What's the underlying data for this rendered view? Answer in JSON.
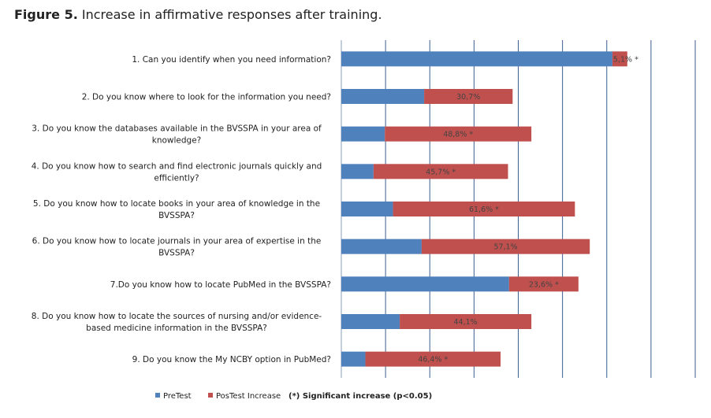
{
  "figure": {
    "label": "Figure 5.",
    "caption": "Increase in affirmative responses after training."
  },
  "chart_data": {
    "type": "bar",
    "orientation": "horizontal",
    "stacked": true,
    "title": "Figure 5. Increase in affirmative responses after training.",
    "xlim": [
      0,
      100
    ],
    "grid": true,
    "legend_position": "bottom",
    "categories": [
      [
        "1. Can you identify when you need information?"
      ],
      [
        "2. Do you know where to look for the information you need?"
      ],
      [
        "3. Do you know the databases available in the BVSSPA in your area of",
        "knowledge?"
      ],
      [
        "4. Do you know how to search and find electronic journals quickly and",
        "efficiently?"
      ],
      [
        "5. Do you know how to locate books in your area of knowledge in the",
        "BVSSPA?"
      ],
      [
        "6. Do you know how to locate journals in your area of expertise in the",
        "BVSSPA?"
      ],
      [
        "7.Do you know how to locate PubMed in the BVSSPA?"
      ],
      [
        "8. Do you know how to locate the sources of nursing and/or evidence-",
        "based medicine information in the BVSSPA?"
      ],
      [
        "9. Do you know the My NCBY option in PubMed?"
      ]
    ],
    "series": [
      {
        "name": "PreTest",
        "color": "#4F81BD",
        "values": [
          76.6,
          23.4,
          12.3,
          9.1,
          14.6,
          22.7,
          47.4,
          16.5,
          6.8
        ]
      },
      {
        "name": "PosTest Increase",
        "color": "#C0504D",
        "values": [
          4.2,
          25.0,
          41.4,
          38.0,
          51.4,
          47.5,
          19.6,
          37.2,
          38.2
        ]
      }
    ],
    "data_labels": [
      "5,1% *",
      "30,7%",
      "48,8% *",
      "45,7% *",
      "61,6% *",
      "57,1%",
      "23,6% *",
      "44,1%",
      "46,4% *"
    ],
    "legend_note": "(*) Significant increase (p<0.05)"
  }
}
